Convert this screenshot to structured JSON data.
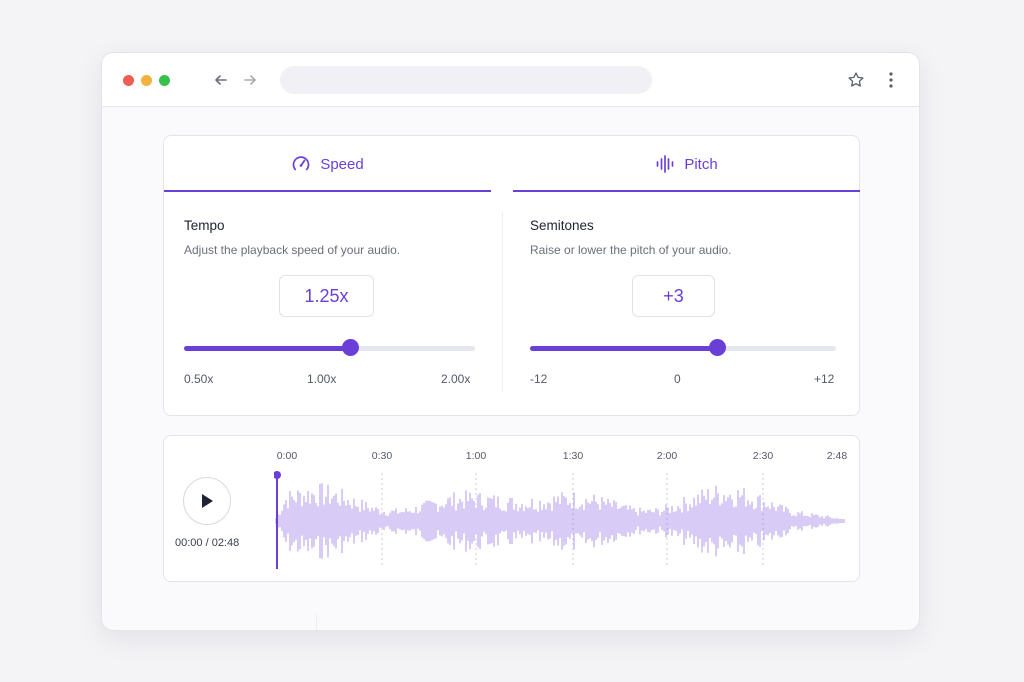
{
  "browser": {
    "traffic_lights": [
      "#ee5d52",
      "#f4b13d",
      "#38c04c"
    ],
    "icons": [
      "arrow-left-icon",
      "arrow-right-icon",
      "star-icon",
      "more-vertical-icon"
    ]
  },
  "tabs": [
    {
      "label": "Speed",
      "icon": "speedometer-icon"
    },
    {
      "label": "Pitch",
      "icon": "waveform-icon"
    }
  ],
  "accent_color": "#6a3fd8",
  "speed": {
    "title": "Tempo",
    "description": "Adjust the playback speed of your audio.",
    "value": "1.25x",
    "slider_fraction": 0.57,
    "min_label": "0.50x",
    "mid_label": "1.00x",
    "max_label": "2.00x"
  },
  "pitch": {
    "title": "Semitones",
    "description": "Raise or lower the pitch of your audio.",
    "value": "+3",
    "slider_fraction": 0.61,
    "min_label": "-12",
    "mid_label": "0",
    "max_label": "+12"
  },
  "player": {
    "time_readout": "00:00 / 02:48",
    "timeline_labels": [
      "0:00",
      "0:30",
      "1:00",
      "1:30",
      "2:00",
      "2:30",
      "2:48"
    ],
    "playhead_fraction": 0,
    "waveform_color": "#c4b1f2"
  }
}
